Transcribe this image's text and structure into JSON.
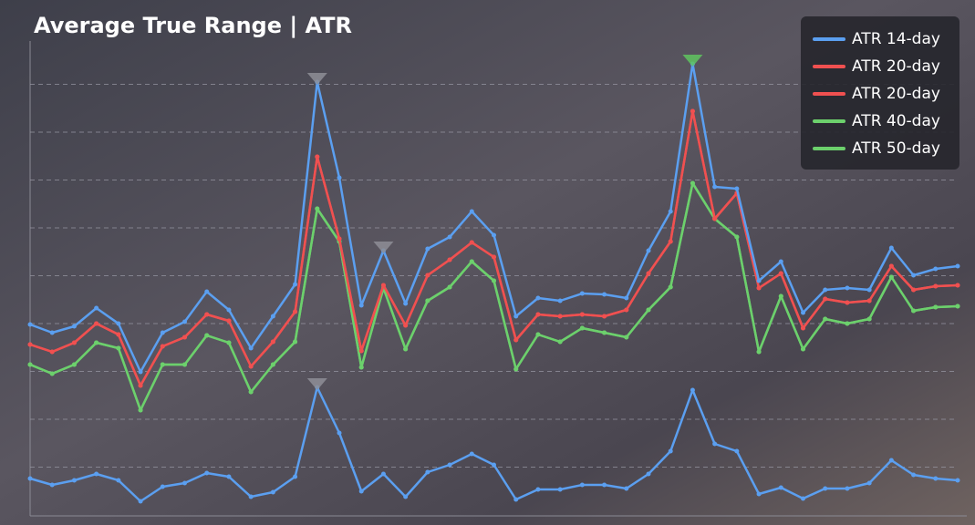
{
  "chart_data": {
    "type": "line",
    "title": "Average True Range | ATR",
    "x": [
      0,
      1,
      2,
      3,
      4,
      5,
      6,
      7,
      8,
      9,
      10,
      11,
      12,
      13,
      14,
      15,
      16,
      17,
      18,
      19,
      20,
      21,
      22,
      23,
      24,
      25,
      26,
      27,
      28,
      29,
      30,
      31,
      32,
      33,
      34,
      35,
      36,
      37,
      38,
      39,
      40,
      41,
      42
    ],
    "xlim": [
      0,
      42
    ],
    "ylim": [
      0,
      525
    ],
    "yticks": [
      52.5,
      105,
      157.5,
      210,
      262.5,
      315,
      367.5,
      420,
      472.5
    ],
    "grid": true,
    "legend": "upper right",
    "series": [
      {
        "name": "ATR 14-day",
        "color": "#5b9ff0",
        "values": [
          209,
          200,
          207,
          227,
          210,
          157,
          200,
          212,
          245,
          225,
          183,
          218,
          253,
          475,
          370,
          230,
          290,
          232,
          292,
          305,
          333,
          307,
          218,
          238,
          235,
          243,
          242,
          238,
          290,
          333,
          495,
          360,
          358,
          257,
          278,
          222,
          247,
          249,
          247,
          293,
          263,
          270,
          273
        ]
      },
      {
        "name": "ATR 20-day",
        "color": "#f05050",
        "values": [
          187,
          179,
          189,
          210,
          198,
          142,
          185,
          195,
          220,
          213,
          163,
          190,
          223,
          393,
          303,
          180,
          252,
          208,
          263,
          280,
          299,
          283,
          192,
          220,
          218,
          220,
          218,
          225,
          265,
          300,
          443,
          325,
          353,
          249,
          265,
          205,
          237,
          233,
          235,
          273,
          247,
          251,
          252
        ]
      },
      {
        "name": "ATR 20-day",
        "color": "#f05050",
        "values": [
          187,
          179,
          189,
          210,
          198,
          142,
          185,
          195,
          220,
          213,
          163,
          190,
          223,
          393,
          303,
          180,
          252,
          208,
          263,
          280,
          299,
          283,
          192,
          220,
          218,
          220,
          218,
          225,
          265,
          300,
          443,
          325,
          353,
          249,
          265,
          205,
          237,
          233,
          235,
          273,
          247,
          251,
          252
        ]
      },
      {
        "name": "ATR 40-day",
        "color": "#6cd06c",
        "values": [
          165,
          155,
          165,
          189,
          183,
          115,
          165,
          165,
          197,
          189,
          135,
          165,
          190,
          336,
          300,
          162,
          249,
          182,
          235,
          250,
          278,
          257,
          160,
          198,
          190,
          205,
          200,
          195,
          225,
          250,
          364,
          325,
          305,
          179,
          240,
          182,
          215,
          210,
          215,
          261,
          224,
          228,
          229
        ]
      },
      {
        "name": "ATR 50-day",
        "color": "#6cd06c",
        "values": [
          165,
          155,
          165,
          189,
          183,
          115,
          165,
          165,
          197,
          189,
          135,
          165,
          190,
          336,
          300,
          162,
          249,
          182,
          235,
          250,
          278,
          257,
          160,
          198,
          190,
          205,
          200,
          195,
          225,
          250,
          364,
          325,
          305,
          179,
          240,
          182,
          215,
          210,
          215,
          261,
          224,
          228,
          229
        ]
      },
      {
        "color": "#5b9ff0",
        "values": [
          40,
          33,
          38,
          45,
          38,
          15,
          31,
          35,
          46,
          42,
          20,
          25,
          42,
          140,
          90,
          26,
          45,
          20,
          47,
          55,
          67,
          55,
          17,
          28,
          28,
          33,
          33,
          29,
          45,
          70,
          137,
          78,
          70,
          23,
          30,
          18,
          29,
          29,
          35,
          60,
          44,
          40,
          38
        ]
      }
    ]
  }
}
